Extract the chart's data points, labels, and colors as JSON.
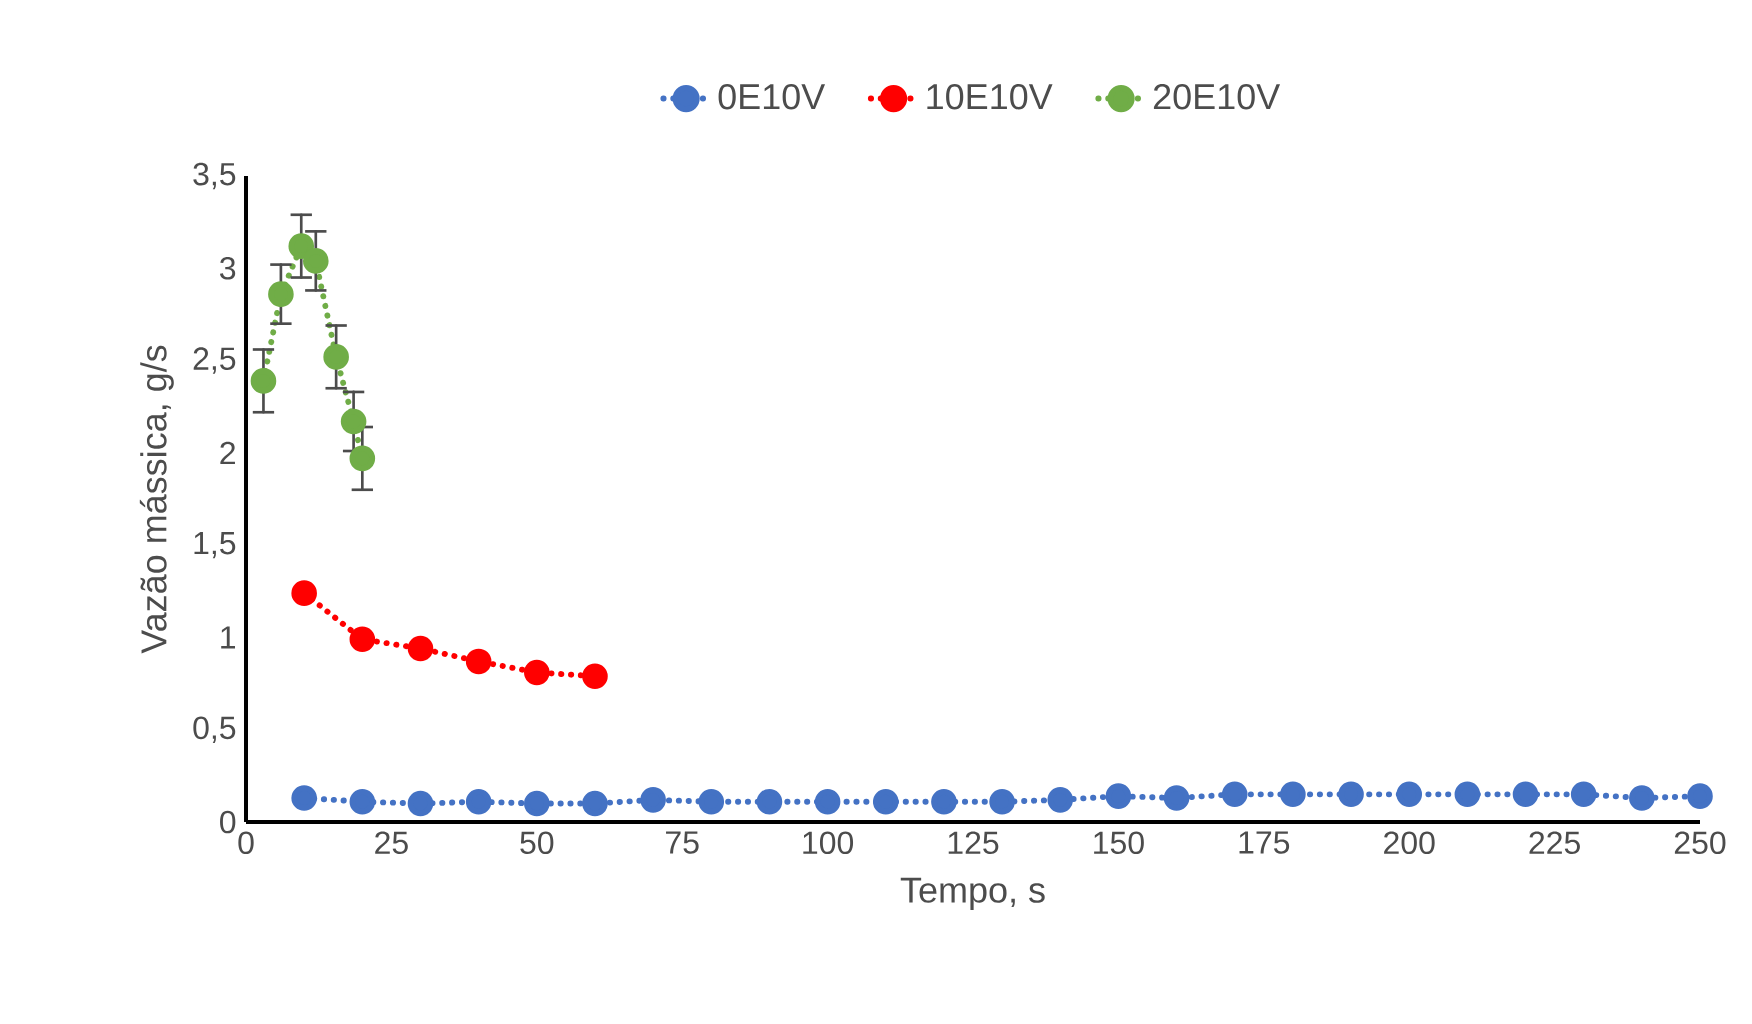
{
  "chart_data": {
    "type": "line",
    "xlabel": "Tempo, s",
    "ylabel": "Vazão mássica, g/s",
    "xlim": [
      0,
      250
    ],
    "xticks": [
      0,
      25,
      50,
      75,
      100,
      125,
      150,
      175,
      200,
      225,
      250
    ],
    "ylim": [
      0,
      3.5
    ],
    "yticks": [
      0,
      {
        "value": 0.5,
        "label": "0,5"
      },
      1,
      {
        "value": 1.5,
        "label": "1,5"
      },
      2,
      {
        "value": 2.5,
        "label": "2,5"
      },
      3,
      {
        "value": 3.5,
        "label": "3,5"
      }
    ],
    "grid": false,
    "legend": "top",
    "marker": "circle",
    "line_style": "dotted",
    "series": [
      {
        "name": "0E10V",
        "color": "#4472c4",
        "x": [
          10,
          20,
          30,
          40,
          50,
          60,
          70,
          80,
          90,
          100,
          110,
          120,
          130,
          140,
          150,
          160,
          170,
          180,
          190,
          200,
          210,
          220,
          230,
          240,
          250
        ],
        "values": [
          0.13,
          0.11,
          0.1,
          0.11,
          0.1,
          0.1,
          0.12,
          0.11,
          0.11,
          0.11,
          0.11,
          0.11,
          0.11,
          0.12,
          0.14,
          0.13,
          0.15,
          0.15,
          0.15,
          0.15,
          0.15,
          0.15,
          0.15,
          0.13,
          0.14
        ]
      },
      {
        "name": "10E10V",
        "color": "#ff0000",
        "x": [
          10,
          20,
          30,
          40,
          50,
          60
        ],
        "values": [
          1.24,
          0.99,
          0.94,
          0.87,
          0.81,
          0.79
        ]
      },
      {
        "name": "20E10V",
        "color": "#70ad47",
        "x": [
          3,
          6,
          9.5,
          12,
          15.5,
          18.5,
          20
        ],
        "values": [
          2.39,
          2.86,
          3.12,
          3.04,
          2.52,
          2.17,
          1.97
        ],
        "errors": [
          0.17,
          0.16,
          0.17,
          0.16,
          0.17,
          0.16,
          0.17
        ]
      }
    ]
  }
}
